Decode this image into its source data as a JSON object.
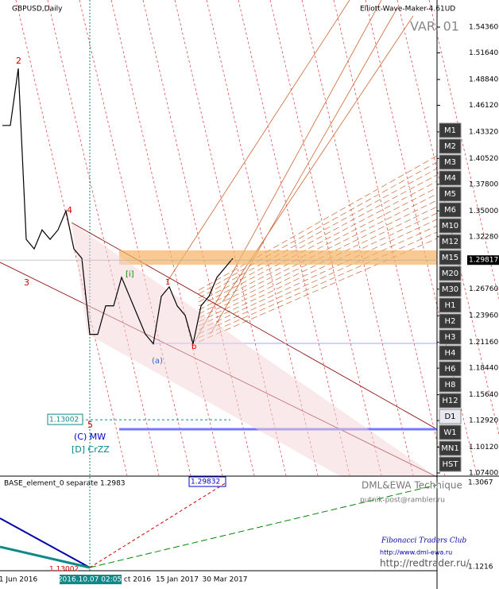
{
  "chart_data": {
    "type": "line",
    "title": "GBPUSD,Daily",
    "indicator": "Elliott-Wave-Maker-4.61UD",
    "variant": "VAR. 01",
    "categories": [
      null,
      null,
      "1 Jun 2016",
      null,
      null,
      null,
      null,
      null,
      null,
      null,
      null,
      "2016.10.07 02:05",
      null,
      null,
      null,
      null,
      null,
      "ct 2016",
      null,
      null,
      null,
      null,
      "15 Jan 2017",
      null,
      null,
      null,
      null,
      null,
      "30 Mar 2017",
      null
    ],
    "series": [
      {
        "name": "GBPUSD",
        "color": "#000000",
        "values": [
          1.44,
          1.44,
          1.5,
          1.32,
          1.31,
          1.33,
          1.32,
          1.33,
          1.35,
          1.31,
          1.3,
          1.22,
          1.22,
          1.25,
          1.25,
          1.28,
          1.26,
          1.24,
          1.22,
          1.21,
          1.26,
          1.27,
          1.25,
          1.24,
          1.21,
          1.25,
          1.26,
          1.28,
          1.29,
          1.3
        ]
      }
    ],
    "ylim": [
      1.0715,
      1.5654
    ],
    "yticks": [
      {
        "value": 1.5436,
        "label": "1.54360"
      },
      {
        "value": 1.5164,
        "label": "1.51640"
      },
      {
        "value": 1.4884,
        "label": "1.48840"
      },
      {
        "value": 1.4612,
        "label": "1.46120"
      },
      {
        "value": 1.4332,
        "label": "1.43320"
      },
      {
        "value": 1.4052,
        "label": "1.40520"
      },
      {
        "value": 1.378,
        "label": "1.37800"
      },
      {
        "value": 1.35,
        "label": "1.35000"
      },
      {
        "value": 1.3228,
        "label": "1.32280"
      },
      {
        "value": 1.2676,
        "label": "1.26760"
      },
      {
        "value": 1.2396,
        "label": "1.23960"
      },
      {
        "value": 1.2116,
        "label": "1.21160"
      },
      {
        "value": 1.1844,
        "label": "1.18440"
      },
      {
        "value": 1.1564,
        "label": "1.15640"
      },
      {
        "value": 1.1292,
        "label": "1.12920"
      },
      {
        "value": 1.1012,
        "label": "1.10120"
      },
      {
        "value": 1.074,
        "label": "1.07400"
      }
    ],
    "current_price": 1.29817,
    "level_label": 1.13002,
    "wave_labels": [
      "2",
      "4",
      "3",
      "5",
      "(C) MW",
      "[D] CrZZ",
      "[i]",
      "1",
      "(a)",
      "b"
    ],
    "buttons": [
      "M1",
      "M2",
      "M3",
      "M4",
      "M5",
      "M6",
      "M10",
      "M12",
      "M15",
      "M20",
      "M30",
      "H1",
      "H2",
      "H3",
      "H4",
      "H6",
      "H8",
      "H12",
      "D1",
      "W1",
      "MN1",
      "HST"
    ],
    "sub_panel": {
      "title": "BASE_element_0 separate 1.2983",
      "top_value": 1.29832,
      "top_scale": 1.3067,
      "bottom_scale": 1.1216,
      "low_value": 1.13002
    },
    "credits": [
      "DML&EWA Technique",
      "putnik-post@rambler.ru",
      "Fibonacci Traders Club",
      "http://www.dml-ewa.ru",
      "http://redtrader.ru/"
    ]
  }
}
